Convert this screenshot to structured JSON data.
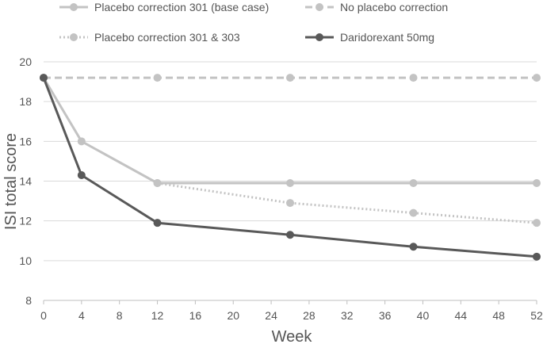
{
  "chart_data": {
    "type": "line",
    "title": "",
    "xlabel": "Week",
    "ylabel": "ISI total score",
    "xlim": [
      0,
      52
    ],
    "ylim": [
      8,
      20
    ],
    "xticks": [
      0,
      4,
      8,
      12,
      16,
      20,
      24,
      28,
      32,
      36,
      40,
      44,
      48,
      52
    ],
    "yticks": [
      8,
      10,
      12,
      14,
      16,
      18,
      20
    ],
    "grid": "horizontal",
    "legend_position": "top",
    "series": [
      {
        "name": "Placebo correction 301 (base case)",
        "color": "#c3c3c3",
        "style": "solid",
        "x": [
          0,
          4,
          12,
          26,
          39,
          52
        ],
        "y": [
          19.2,
          16.0,
          13.9,
          13.9,
          13.9,
          13.9
        ]
      },
      {
        "name": "No placebo correction",
        "color": "#c3c3c3",
        "style": "dashed",
        "x": [
          0,
          12,
          26,
          39,
          52
        ],
        "y": [
          19.2,
          19.2,
          19.2,
          19.2,
          19.2
        ]
      },
      {
        "name": "Placebo correction 301 & 303",
        "color": "#c3c3c3",
        "style": "dotted",
        "x": [
          12,
          26,
          39,
          52
        ],
        "y": [
          13.9,
          12.9,
          12.4,
          11.9
        ]
      },
      {
        "name": "Daridorexant 50mg",
        "color": "#595959",
        "style": "solid",
        "x": [
          0,
          4,
          12,
          26,
          39,
          52
        ],
        "y": [
          19.2,
          14.3,
          11.9,
          11.3,
          10.7,
          10.2
        ]
      }
    ]
  }
}
